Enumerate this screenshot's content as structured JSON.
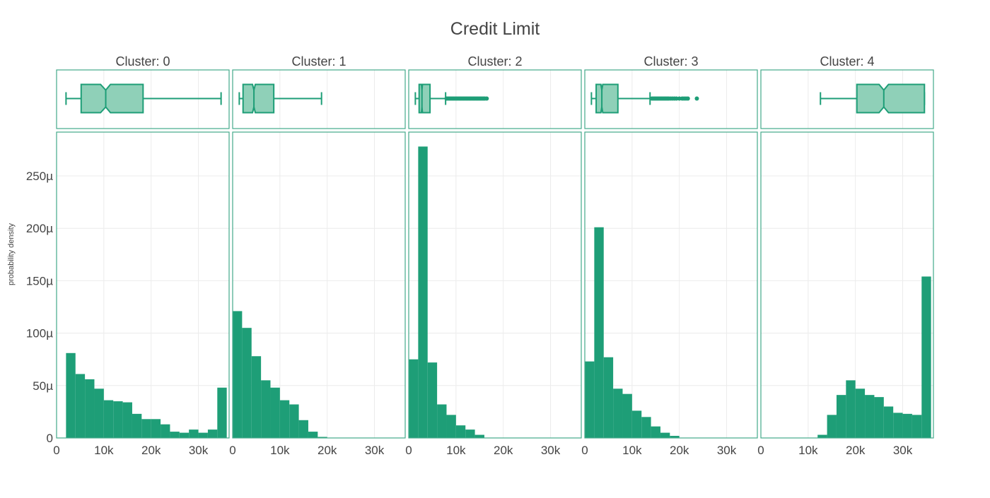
{
  "chart_data": {
    "type": "histogram",
    "title": "Credit Limit",
    "ylabel": "probability density",
    "xlabel": "",
    "color": "#1e9e77",
    "box_fill": "#8fd0b8",
    "frame_color": "#43a98a",
    "xlim": [
      0,
      36500
    ],
    "ylim": [
      0,
      290
    ],
    "y_unit": "µ",
    "x_ticks": [
      0,
      10000,
      20000,
      30000
    ],
    "x_tick_labels": [
      "0",
      "10k",
      "20k",
      "30k"
    ],
    "y_ticks": [
      0,
      50,
      100,
      150,
      200,
      250
    ],
    "y_tick_labels": [
      "0",
      "50µ",
      "100µ",
      "150µ",
      "200µ",
      "250µ"
    ],
    "bin_width": 2000,
    "panels": [
      {
        "label": "Cluster: 0",
        "bin_start": 2000,
        "values": [
          81,
          61,
          56,
          47,
          36,
          35,
          34,
          23,
          18,
          18,
          13,
          6,
          5,
          8,
          5,
          8,
          48
        ],
        "bin_edges_override": null,
        "box": {
          "min": 2000,
          "q1": 5200,
          "median": 10400,
          "q3": 18300,
          "max": 34800,
          "notch": [
            9300,
            11400
          ]
        },
        "outliers": []
      },
      {
        "label": "Cluster: 1",
        "bin_start": 0,
        "values": [
          121,
          105,
          78,
          55,
          48,
          36,
          32,
          17,
          6,
          1,
          0,
          0,
          0,
          0,
          0,
          0,
          0,
          0
        ],
        "box": {
          "min": 1400,
          "q1": 2200,
          "median": 4500,
          "q3": 8700,
          "max": 18800,
          "notch": [
            4200,
            4800
          ]
        },
        "outliers": []
      },
      {
        "label": "Cluster: 2",
        "bin_start": 0,
        "values": [
          75,
          278,
          72,
          32,
          22,
          12,
          8,
          3,
          0,
          0,
          0,
          0,
          0,
          0,
          0,
          0,
          0,
          0
        ],
        "box": {
          "min": 1400,
          "q1": 2200,
          "median": 2800,
          "q3": 4500,
          "max": 7800,
          "notch": [
            2700,
            2900
          ]
        },
        "outliers": [
          8000,
          8300,
          8600,
          8900,
          9200,
          9500,
          9800,
          10100,
          10400,
          10700,
          11000,
          11300,
          11600,
          11900,
          12200,
          12500,
          12800,
          13100,
          13400,
          13700,
          14000,
          14300,
          14600,
          14900,
          15200,
          15500,
          15800,
          16100,
          16500
        ]
      },
      {
        "label": "Cluster: 3",
        "bin_start": 0,
        "values": [
          73,
          201,
          77,
          47,
          42,
          26,
          20,
          11,
          5,
          2,
          0,
          0,
          0,
          0,
          0,
          0,
          0,
          0
        ],
        "box": {
          "min": 1400,
          "q1": 2400,
          "median": 3600,
          "q3": 7000,
          "max": 13800,
          "notch": [
            3400,
            3800
          ]
        },
        "outliers": [
          14200,
          14500,
          14800,
          15100,
          15400,
          15700,
          16000,
          16300,
          16600,
          16900,
          17200,
          17500,
          17800,
          18200,
          18600,
          19000,
          19400,
          20000,
          20600,
          21000,
          21400,
          21800,
          23700
        ]
      },
      {
        "label": "Cluster: 4",
        "bin_start": 12000,
        "values": [
          3,
          22,
          41,
          55,
          47,
          41,
          39,
          30,
          24,
          23,
          22,
          154
        ],
        "box": {
          "min": 12600,
          "q1": 20300,
          "median": 26000,
          "q3": 34600,
          "max": 34600,
          "notch": [
            25000,
            27000
          ]
        },
        "outliers": []
      }
    ]
  }
}
